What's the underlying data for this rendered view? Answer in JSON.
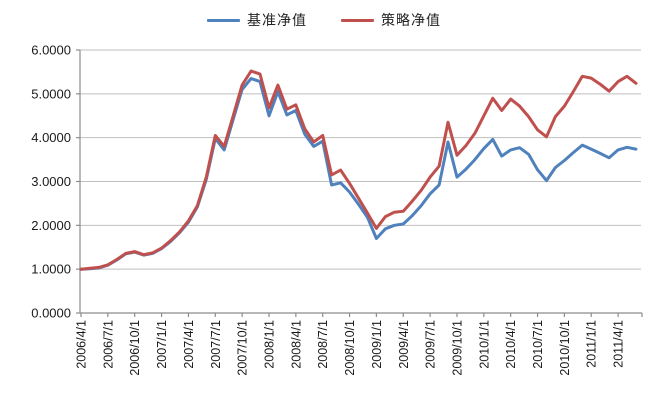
{
  "chart_data": {
    "type": "line",
    "title": "",
    "legend_position": "top",
    "grid": true,
    "ylim": [
      0,
      6
    ],
    "y_tick_labels": [
      "0.0000",
      "1.0000",
      "2.0000",
      "3.0000",
      "4.0000",
      "5.0000",
      "6.0000"
    ],
    "x_tick_labels": [
      "2006/4/1",
      "2006/7/1",
      "2006/10/1",
      "2007/1/1",
      "2007/4/1",
      "2007/7/1",
      "2007/10/1",
      "2008/1/1",
      "2008/4/1",
      "2008/7/1",
      "2008/10/1",
      "2009/1/1",
      "2009/4/1",
      "2009/7/1",
      "2009/10/1",
      "2010/1/1",
      "2010/4/1",
      "2010/7/1",
      "2010/10/1",
      "2011/1/1",
      "2011/4/1"
    ],
    "x_is_monthly": true,
    "x_months": [
      "2006/4",
      "2006/5",
      "2006/6",
      "2006/7",
      "2006/8",
      "2006/9",
      "2006/10",
      "2006/11",
      "2006/12",
      "2007/1",
      "2007/2",
      "2007/3",
      "2007/4",
      "2007/5",
      "2007/6",
      "2007/7",
      "2007/8",
      "2007/9",
      "2007/10",
      "2007/11",
      "2007/12",
      "2008/1",
      "2008/2",
      "2008/3",
      "2008/4",
      "2008/5",
      "2008/6",
      "2008/7",
      "2008/8",
      "2008/9",
      "2008/10",
      "2008/11",
      "2008/12",
      "2009/1",
      "2009/2",
      "2009/3",
      "2009/4",
      "2009/5",
      "2009/6",
      "2009/7",
      "2009/8",
      "2009/9",
      "2009/10",
      "2009/11",
      "2009/12",
      "2010/1",
      "2010/2",
      "2010/3",
      "2010/4",
      "2010/5",
      "2010/6",
      "2010/7",
      "2010/8",
      "2010/9",
      "2010/10",
      "2010/11",
      "2010/12",
      "2011/1",
      "2011/2",
      "2011/3",
      "2011/4",
      "2011/5",
      "2011/6"
    ],
    "series": [
      {
        "name": "基准净值",
        "color": "#4F81BD",
        "values": [
          1.0,
          1.01,
          1.03,
          1.09,
          1.21,
          1.35,
          1.39,
          1.32,
          1.36,
          1.47,
          1.63,
          1.83,
          2.07,
          2.42,
          3.05,
          3.98,
          3.72,
          4.42,
          5.1,
          5.35,
          5.28,
          4.5,
          5.05,
          4.52,
          4.62,
          4.08,
          3.8,
          3.92,
          2.92,
          2.97,
          2.76,
          2.48,
          2.18,
          1.7,
          1.92,
          2.0,
          2.03,
          2.22,
          2.45,
          2.72,
          2.92,
          3.9,
          3.1,
          3.28,
          3.5,
          3.75,
          3.96,
          3.58,
          3.72,
          3.77,
          3.62,
          3.27,
          3.02,
          3.32,
          3.48,
          3.66,
          3.83,
          3.74,
          3.64,
          3.54,
          3.72,
          3.78,
          3.74
        ]
      },
      {
        "name": "策略净值",
        "color": "#C0504D",
        "values": [
          1.0,
          1.02,
          1.04,
          1.1,
          1.22,
          1.36,
          1.4,
          1.33,
          1.37,
          1.48,
          1.65,
          1.85,
          2.1,
          2.45,
          3.1,
          4.05,
          3.8,
          4.5,
          5.2,
          5.52,
          5.45,
          4.68,
          5.2,
          4.65,
          4.75,
          4.2,
          3.9,
          4.05,
          3.15,
          3.26,
          2.96,
          2.62,
          2.28,
          1.93,
          2.2,
          2.3,
          2.32,
          2.55,
          2.8,
          3.1,
          3.35,
          4.35,
          3.6,
          3.82,
          4.1,
          4.5,
          4.9,
          4.62,
          4.88,
          4.72,
          4.48,
          4.18,
          4.02,
          4.48,
          4.72,
          5.05,
          5.4,
          5.36,
          5.22,
          5.06,
          5.28,
          5.4,
          5.24
        ]
      }
    ],
    "colors": {
      "grid": "#BFBFBF",
      "axis": "#8C8C8C",
      "tick_text": "#1a1a1a"
    }
  }
}
